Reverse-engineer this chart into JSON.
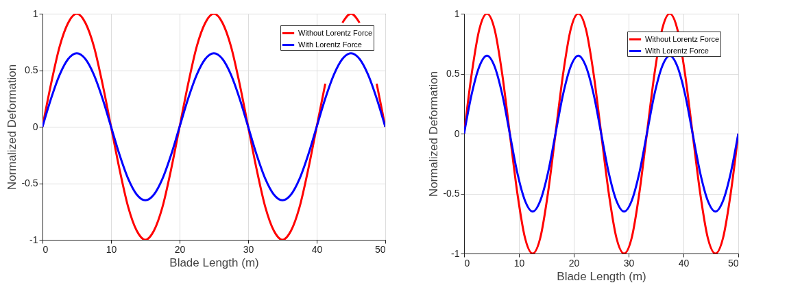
{
  "chart_data": [
    {
      "type": "line",
      "xlabel": "Blade Length (m)",
      "ylabel": "Normalized Deformation",
      "xlim": [
        0,
        50
      ],
      "ylim": [
        -1,
        1
      ],
      "xticks": [
        0,
        10,
        20,
        30,
        40,
        50
      ],
      "yticks": [
        -1,
        -0.5,
        0,
        0.5,
        1
      ],
      "grid": true,
      "legend": "top right",
      "line_style": "solid",
      "x": [
        0,
        1.25,
        2.5,
        3.75,
        5,
        6.25,
        7.5,
        8.75,
        10,
        11.25,
        12.5,
        13.75,
        15,
        16.25,
        17.5,
        18.75,
        20,
        21.25,
        22.5,
        23.75,
        25,
        26.25,
        27.5,
        28.75,
        30,
        31.25,
        32.5,
        33.75,
        35,
        36.25,
        37.5,
        38.75,
        40,
        41.25,
        42.5,
        43.75,
        45,
        46.25,
        47.5,
        48.75,
        50
      ],
      "series": [
        {
          "name": "Without Lorentz Force",
          "color": "#ff0000",
          "values": [
            0,
            0.38,
            0.71,
            0.92,
            1,
            0.92,
            0.71,
            0.38,
            0,
            -0.38,
            -0.71,
            -0.92,
            -1,
            -0.92,
            -0.71,
            -0.38,
            0,
            0.38,
            0.71,
            0.92,
            1,
            0.92,
            0.71,
            0.38,
            0,
            -0.38,
            -0.71,
            -0.92,
            -1,
            -0.92,
            -0.71,
            -0.38,
            0,
            0.38,
            null,
            0.92,
            1,
            0.92,
            null,
            0.38,
            0
          ]
        },
        {
          "name": "With Lorentz Force",
          "color": "#0000ff",
          "values": [
            0,
            0.25,
            0.46,
            0.6,
            0.65,
            0.6,
            0.46,
            0.25,
            0,
            -0.25,
            -0.46,
            -0.6,
            -0.65,
            -0.6,
            -0.46,
            -0.25,
            0,
            0.25,
            0.46,
            0.6,
            0.65,
            0.6,
            0.46,
            0.25,
            0,
            -0.25,
            -0.46,
            -0.6,
            -0.65,
            -0.6,
            -0.46,
            -0.25,
            0,
            0.25,
            0.46,
            0.6,
            0.65,
            0.6,
            0.46,
            0.25,
            0
          ]
        }
      ]
    },
    {
      "type": "line",
      "xlabel": "Blade Length (m)",
      "ylabel": "Normalized Deformation",
      "xlim": [
        0,
        50
      ],
      "ylim": [
        -1,
        1
      ],
      "xticks": [
        0,
        10,
        20,
        30,
        40,
        50
      ],
      "yticks": [
        -1,
        -0.5,
        0,
        0.5,
        1
      ],
      "grid": true,
      "legend": "top right",
      "line_style": "solid",
      "x": [
        0,
        1.39,
        2.78,
        4.17,
        5.56,
        6.94,
        8.33,
        9.72,
        11.11,
        12.5,
        13.89,
        15.28,
        16.67,
        18.06,
        19.44,
        20.83,
        22.22,
        23.61,
        25,
        26.39,
        27.78,
        29.17,
        30.56,
        31.94,
        33.33,
        34.72,
        36.11,
        37.5,
        38.89,
        40.28,
        41.67,
        43.06,
        44.44,
        45.83,
        47.22,
        48.61,
        50
      ],
      "series": [
        {
          "name": "Without Lorentz Force",
          "color": "#ff0000",
          "values": [
            0,
            0.5,
            0.87,
            1,
            0.87,
            0.5,
            0,
            -0.5,
            -0.87,
            -1,
            -0.87,
            -0.5,
            0,
            0.5,
            0.87,
            1,
            0.87,
            0.5,
            0,
            -0.5,
            -0.87,
            -1,
            -0.87,
            -0.5,
            0,
            0.5,
            0.87,
            1,
            0.87,
            0.5,
            0,
            -0.5,
            -0.87,
            -1,
            -0.87,
            -0.5,
            0
          ]
        },
        {
          "name": "With Lorentz Force",
          "color": "#0000ff",
          "values": [
            0,
            0.33,
            0.56,
            0.65,
            0.56,
            0.33,
            0,
            -0.33,
            -0.56,
            -0.65,
            -0.56,
            -0.33,
            0,
            0.33,
            0.56,
            0.65,
            0.56,
            0.33,
            0,
            -0.33,
            -0.56,
            -0.65,
            -0.56,
            -0.33,
            0,
            0.33,
            0.56,
            0.65,
            0.56,
            0.33,
            0,
            -0.33,
            -0.56,
            -0.65,
            -0.56,
            -0.33,
            0
          ]
        }
      ]
    }
  ]
}
